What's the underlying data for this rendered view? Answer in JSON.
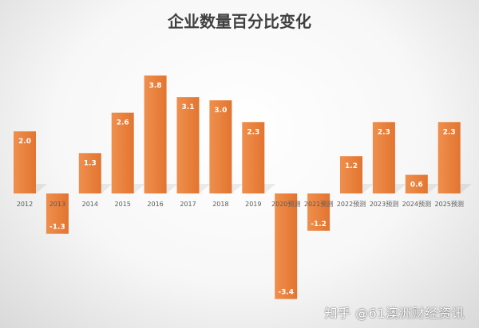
{
  "chart_data": {
    "type": "bar",
    "title": "企业数量百分比变化",
    "categories": [
      "2012",
      "2013",
      "2014",
      "2015",
      "2016",
      "2017",
      "2018",
      "2019",
      "2020预测",
      "2021预测",
      "2022预测",
      "2023预测",
      "2024预测",
      "2025预测"
    ],
    "values": [
      2.0,
      -1.3,
      1.3,
      2.6,
      3.8,
      3.1,
      3.0,
      2.3,
      -3.4,
      -1.2,
      1.2,
      2.3,
      0.6,
      2.3
    ],
    "value_labels": [
      "2.0",
      "-1.3",
      "1.3",
      "2.6",
      "3.8",
      "3.1",
      "3.0",
      "2.3",
      "-3.4",
      "-1.2",
      "1.2",
      "2.3",
      "0.6",
      "2.3"
    ],
    "xlabel": "",
    "ylabel": "",
    "ylim": [
      -3.4,
      3.8
    ],
    "grid": false,
    "legend": "none",
    "bar_color": "#E8823E",
    "label_color": "#ffffff"
  },
  "watermark": "知乎 @61澳洲财经资讯"
}
